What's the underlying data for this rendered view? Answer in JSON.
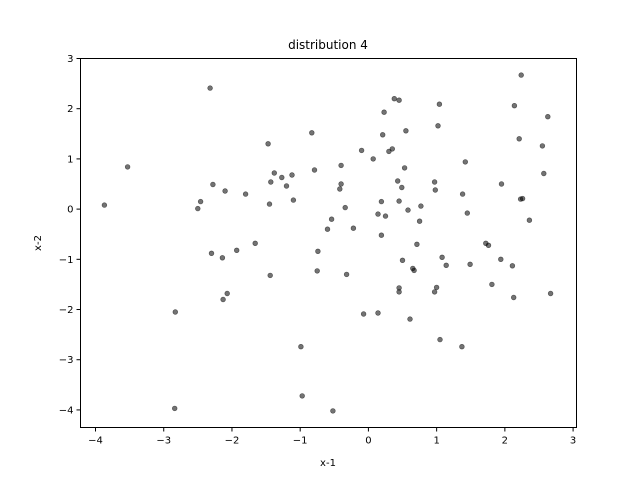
{
  "chart_data": {
    "type": "scatter",
    "title": "distribution 4",
    "xlabel": "x-1",
    "ylabel": "x-2",
    "xlim": [
      -4.22,
      3.05
    ],
    "ylim": [
      -4.35,
      3.0
    ],
    "xticks": [
      -4,
      -3,
      -2,
      -1,
      0,
      1,
      2,
      3
    ],
    "yticks": [
      -4,
      -3,
      -2,
      -1,
      0,
      1,
      2,
      3
    ],
    "grid": false,
    "marker_color": "#000000",
    "marker_alpha": 0.55,
    "points": [
      [
        -3.87,
        0.08
      ],
      [
        -3.53,
        0.84
      ],
      [
        -2.83,
        -2.05
      ],
      [
        -2.84,
        -3.97
      ],
      [
        -2.32,
        2.41
      ],
      [
        -2.28,
        0.49
      ],
      [
        -2.3,
        -0.88
      ],
      [
        -2.5,
        0.01
      ],
      [
        -2.46,
        0.15
      ],
      [
        -2.14,
        -0.97
      ],
      [
        -2.1,
        0.36
      ],
      [
        -2.13,
        -1.8
      ],
      [
        -2.07,
        -1.68
      ],
      [
        -1.93,
        -0.82
      ],
      [
        -1.8,
        0.3
      ],
      [
        -1.66,
        -0.68
      ],
      [
        -1.47,
        1.3
      ],
      [
        -1.45,
        0.1
      ],
      [
        -1.43,
        0.54
      ],
      [
        -1.38,
        0.72
      ],
      [
        -1.27,
        0.63
      ],
      [
        -1.2,
        0.46
      ],
      [
        -1.12,
        0.68
      ],
      [
        -1.1,
        0.18
      ],
      [
        -1.44,
        -1.32
      ],
      [
        -0.99,
        -2.74
      ],
      [
        -0.97,
        -3.72
      ],
      [
        -0.83,
        1.52
      ],
      [
        -0.79,
        0.78
      ],
      [
        -0.74,
        -0.84
      ],
      [
        -0.75,
        -1.23
      ],
      [
        -0.6,
        -0.4
      ],
      [
        -0.54,
        -0.2
      ],
      [
        -0.52,
        -4.02
      ],
      [
        -0.42,
        0.4
      ],
      [
        -0.4,
        0.5
      ],
      [
        -0.4,
        0.87
      ],
      [
        -0.34,
        0.03
      ],
      [
        -0.32,
        -1.3
      ],
      [
        -0.22,
        -0.38
      ],
      [
        -0.1,
        1.17
      ],
      [
        -0.07,
        -2.09
      ],
      [
        0.07,
        1.0
      ],
      [
        0.14,
        -0.1
      ],
      [
        0.14,
        -2.07
      ],
      [
        0.19,
        0.15
      ],
      [
        0.19,
        -0.52
      ],
      [
        0.21,
        1.48
      ],
      [
        0.23,
        1.93
      ],
      [
        0.25,
        -0.14
      ],
      [
        0.3,
        1.15
      ],
      [
        0.35,
        1.2
      ],
      [
        0.38,
        2.2
      ],
      [
        0.43,
        0.56
      ],
      [
        0.45,
        0.16
      ],
      [
        0.45,
        2.17
      ],
      [
        0.45,
        -1.65
      ],
      [
        0.45,
        -1.57
      ],
      [
        0.49,
        0.43
      ],
      [
        0.5,
        -1.02
      ],
      [
        0.53,
        0.82
      ],
      [
        0.55,
        1.56
      ],
      [
        0.58,
        -0.02
      ],
      [
        0.61,
        -2.19
      ],
      [
        0.65,
        -1.18
      ],
      [
        0.67,
        -1.22
      ],
      [
        0.71,
        -0.7
      ],
      [
        0.75,
        -0.24
      ],
      [
        0.77,
        0.06
      ],
      [
        0.97,
        -1.65
      ],
      [
        0.97,
        0.54
      ],
      [
        0.98,
        0.38
      ],
      [
        1.0,
        -1.56
      ],
      [
        1.02,
        1.66
      ],
      [
        1.04,
        2.09
      ],
      [
        1.05,
        -2.6
      ],
      [
        1.08,
        -0.96
      ],
      [
        1.14,
        -1.12
      ],
      [
        1.37,
        -2.74
      ],
      [
        1.38,
        0.3
      ],
      [
        1.42,
        0.94
      ],
      [
        1.45,
        -0.08
      ],
      [
        1.49,
        -1.1
      ],
      [
        1.72,
        -0.68
      ],
      [
        1.76,
        -0.72
      ],
      [
        1.81,
        -1.5
      ],
      [
        1.94,
        -1.0
      ],
      [
        1.95,
        0.5
      ],
      [
        2.11,
        -1.13
      ],
      [
        2.14,
        2.06
      ],
      [
        2.13,
        -1.76
      ],
      [
        2.21,
        1.4
      ],
      [
        2.23,
        0.2
      ],
      [
        2.24,
        2.67
      ],
      [
        2.26,
        0.21
      ],
      [
        2.36,
        -0.22
      ],
      [
        2.55,
        1.26
      ],
      [
        2.57,
        0.71
      ],
      [
        2.63,
        1.84
      ],
      [
        2.67,
        -1.68
      ]
    ]
  }
}
